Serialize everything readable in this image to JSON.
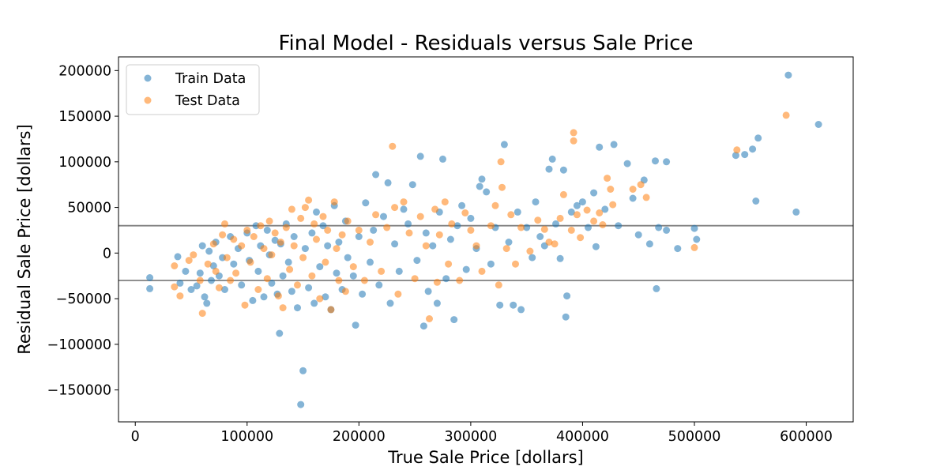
{
  "chart_data": {
    "type": "scatter",
    "title": "Final Model - Residuals versus Sale Price",
    "xlabel": "True Sale Price [dollars]",
    "ylabel": "Residual Sale Price [dollars]",
    "xlim": [
      -15000,
      642000
    ],
    "ylim": [
      -185000,
      215000
    ],
    "xticks": [
      0,
      100000,
      200000,
      300000,
      400000,
      500000,
      600000
    ],
    "xtick_labels": [
      "0",
      "100000",
      "200000",
      "300000",
      "400000",
      "500000",
      "600000"
    ],
    "yticks": [
      -150000,
      -100000,
      -50000,
      0,
      50000,
      100000,
      150000,
      200000
    ],
    "ytick_labels": [
      "−150000",
      "−100000",
      "−50000",
      "0",
      "50000",
      "100000",
      "150000",
      "200000"
    ],
    "grid": false,
    "legend_position": "top-left",
    "reference_lines": [
      30000,
      -30000
    ],
    "reference_line_color": "#808080",
    "series": [
      {
        "name": "Train Data",
        "color": "#1f77b4",
        "opacity": 0.55,
        "points": [
          [
            13000,
            -27000
          ],
          [
            13000,
            -39000
          ],
          [
            38000,
            -4000
          ],
          [
            40000,
            -33000
          ],
          [
            45000,
            -20000
          ],
          [
            50000,
            -40000
          ],
          [
            55000,
            -36000
          ],
          [
            58000,
            -22000
          ],
          [
            60000,
            8000
          ],
          [
            62000,
            -48000
          ],
          [
            64000,
            -55000
          ],
          [
            66000,
            2000
          ],
          [
            68000,
            -30000
          ],
          [
            70000,
            -14000
          ],
          [
            72000,
            12000
          ],
          [
            75000,
            -25000
          ],
          [
            78000,
            -5000
          ],
          [
            80000,
            -40000
          ],
          [
            85000,
            18000
          ],
          [
            88000,
            -12000
          ],
          [
            92000,
            5000
          ],
          [
            95000,
            -35000
          ],
          [
            100000,
            22000
          ],
          [
            102000,
            -8000
          ],
          [
            105000,
            -52000
          ],
          [
            108000,
            30000
          ],
          [
            110000,
            -20000
          ],
          [
            112000,
            8000
          ],
          [
            115000,
            -48000
          ],
          [
            118000,
            25000
          ],
          [
            120000,
            -2000
          ],
          [
            122000,
            -33000
          ],
          [
            125000,
            14000
          ],
          [
            127000,
            -45000
          ],
          [
            129000,
            -88000
          ],
          [
            130000,
            10000
          ],
          [
            132000,
            -25000
          ],
          [
            135000,
            32000
          ],
          [
            137000,
            -10000
          ],
          [
            140000,
            -42000
          ],
          [
            142000,
            18000
          ],
          [
            145000,
            -60000
          ],
          [
            148000,
            -166000
          ],
          [
            150000,
            -129000
          ],
          [
            152000,
            5000
          ],
          [
            155000,
            -38000
          ],
          [
            158000,
            22000
          ],
          [
            160000,
            -55000
          ],
          [
            162000,
            45000
          ],
          [
            165000,
            -15000
          ],
          [
            168000,
            30000
          ],
          [
            170000,
            -48000
          ],
          [
            172000,
            8000
          ],
          [
            175000,
            -62000
          ],
          [
            178000,
            52000
          ],
          [
            180000,
            -22000
          ],
          [
            182000,
            12000
          ],
          [
            185000,
            -40000
          ],
          [
            188000,
            35000
          ],
          [
            190000,
            -5000
          ],
          [
            195000,
            -25000
          ],
          [
            197000,
            -79000
          ],
          [
            200000,
            18000
          ],
          [
            203000,
            -45000
          ],
          [
            206000,
            55000
          ],
          [
            210000,
            -10000
          ],
          [
            213000,
            25000
          ],
          [
            215000,
            86000
          ],
          [
            218000,
            -35000
          ],
          [
            222000,
            40000
          ],
          [
            226000,
            77000
          ],
          [
            228000,
            -55000
          ],
          [
            232000,
            10000
          ],
          [
            236000,
            -20000
          ],
          [
            240000,
            48000
          ],
          [
            244000,
            32000
          ],
          [
            248000,
            75000
          ],
          [
            252000,
            -8000
          ],
          [
            255000,
            106000
          ],
          [
            258000,
            -80000
          ],
          [
            260000,
            22000
          ],
          [
            262000,
            -42000
          ],
          [
            266000,
            8000
          ],
          [
            270000,
            -55000
          ],
          [
            272000,
            45000
          ],
          [
            275000,
            103000
          ],
          [
            278000,
            -28000
          ],
          [
            282000,
            15000
          ],
          [
            285000,
            -73000
          ],
          [
            288000,
            30000
          ],
          [
            292000,
            52000
          ],
          [
            296000,
            -18000
          ],
          [
            300000,
            38000
          ],
          [
            305000,
            5000
          ],
          [
            308000,
            73000
          ],
          [
            310000,
            81000
          ],
          [
            314000,
            67000
          ],
          [
            318000,
            -12000
          ],
          [
            322000,
            28000
          ],
          [
            326000,
            -57000
          ],
          [
            330000,
            119000
          ],
          [
            334000,
            12000
          ],
          [
            338000,
            -57000
          ],
          [
            342000,
            45000
          ],
          [
            345000,
            -62000
          ],
          [
            350000,
            28000
          ],
          [
            355000,
            -5000
          ],
          [
            358000,
            56000
          ],
          [
            362000,
            18000
          ],
          [
            366000,
            8000
          ],
          [
            370000,
            92000
          ],
          [
            373000,
            103000
          ],
          [
            376000,
            32000
          ],
          [
            380000,
            -6000
          ],
          [
            383000,
            91000
          ],
          [
            385000,
            -70000
          ],
          [
            386000,
            -47000
          ],
          [
            390000,
            45000
          ],
          [
            395000,
            52000
          ],
          [
            400000,
            56000
          ],
          [
            405000,
            28000
          ],
          [
            410000,
            66000
          ],
          [
            412000,
            7000
          ],
          [
            415000,
            116000
          ],
          [
            420000,
            48000
          ],
          [
            428000,
            119000
          ],
          [
            432000,
            30000
          ],
          [
            440000,
            98000
          ],
          [
            445000,
            60000
          ],
          [
            450000,
            20000
          ],
          [
            455000,
            80000
          ],
          [
            460000,
            10000
          ],
          [
            465000,
            101000
          ],
          [
            466000,
            -39000
          ],
          [
            468000,
            28000
          ],
          [
            475000,
            100000
          ],
          [
            475000,
            25000
          ],
          [
            485000,
            5000
          ],
          [
            500000,
            27000
          ],
          [
            502000,
            15000
          ],
          [
            537000,
            107000
          ],
          [
            545000,
            108000
          ],
          [
            552000,
            114000
          ],
          [
            555000,
            57000
          ],
          [
            557000,
            126000
          ],
          [
            584000,
            195000
          ],
          [
            591000,
            45000
          ],
          [
            611000,
            141000
          ]
        ]
      },
      {
        "name": "Test Data",
        "color": "#ff7f0e",
        "opacity": 0.55,
        "points": [
          [
            35000,
            -14000
          ],
          [
            35000,
            -37000
          ],
          [
            40000,
            -47000
          ],
          [
            48000,
            -8000
          ],
          [
            52000,
            -2000
          ],
          [
            58000,
            -30000
          ],
          [
            60000,
            -66000
          ],
          [
            65000,
            -12000
          ],
          [
            70000,
            10000
          ],
          [
            72000,
            -20000
          ],
          [
            75000,
            -38000
          ],
          [
            78000,
            20000
          ],
          [
            80000,
            32000
          ],
          [
            82000,
            -5000
          ],
          [
            85000,
            -30000
          ],
          [
            88000,
            15000
          ],
          [
            90000,
            -22000
          ],
          [
            95000,
            8000
          ],
          [
            98000,
            -57000
          ],
          [
            100000,
            25000
          ],
          [
            103000,
            -10000
          ],
          [
            106000,
            18000
          ],
          [
            110000,
            -40000
          ],
          [
            112000,
            30000
          ],
          [
            115000,
            5000
          ],
          [
            118000,
            -28000
          ],
          [
            120000,
            35000
          ],
          [
            122000,
            -2000
          ],
          [
            125000,
            22000
          ],
          [
            128000,
            -47000
          ],
          [
            130000,
            12000
          ],
          [
            132000,
            -60000
          ],
          [
            135000,
            28000
          ],
          [
            138000,
            -18000
          ],
          [
            140000,
            48000
          ],
          [
            142000,
            8000
          ],
          [
            145000,
            -35000
          ],
          [
            148000,
            38000
          ],
          [
            150000,
            -5000
          ],
          [
            152000,
            50000
          ],
          [
            155000,
            58000
          ],
          [
            158000,
            -25000
          ],
          [
            160000,
            32000
          ],
          [
            162000,
            15000
          ],
          [
            165000,
            -50000
          ],
          [
            168000,
            40000
          ],
          [
            170000,
            -10000
          ],
          [
            172000,
            25000
          ],
          [
            175000,
            -62000
          ],
          [
            178000,
            56000
          ],
          [
            180000,
            5000
          ],
          [
            182000,
            -30000
          ],
          [
            185000,
            20000
          ],
          [
            188000,
            -42000
          ],
          [
            190000,
            35000
          ],
          [
            195000,
            -15000
          ],
          [
            200000,
            25000
          ],
          [
            205000,
            -30000
          ],
          [
            210000,
            12000
          ],
          [
            215000,
            42000
          ],
          [
            220000,
            -20000
          ],
          [
            225000,
            28000
          ],
          [
            230000,
            117000
          ],
          [
            232000,
            50000
          ],
          [
            235000,
            -45000
          ],
          [
            240000,
            56000
          ],
          [
            245000,
            22000
          ],
          [
            250000,
            -28000
          ],
          [
            255000,
            40000
          ],
          [
            260000,
            8000
          ],
          [
            263000,
            -72000
          ],
          [
            268000,
            48000
          ],
          [
            270000,
            -32000
          ],
          [
            272000,
            20000
          ],
          [
            277000,
            56000
          ],
          [
            280000,
            -12000
          ],
          [
            283000,
            32000
          ],
          [
            290000,
            -30000
          ],
          [
            295000,
            44000
          ],
          [
            300000,
            25000
          ],
          [
            305000,
            8000
          ],
          [
            310000,
            -20000
          ],
          [
            318000,
            30000
          ],
          [
            322000,
            52000
          ],
          [
            325000,
            -35000
          ],
          [
            327000,
            100000
          ],
          [
            328000,
            72000
          ],
          [
            332000,
            5000
          ],
          [
            336000,
            42000
          ],
          [
            340000,
            -12000
          ],
          [
            345000,
            28000
          ],
          [
            353000,
            2000
          ],
          [
            360000,
            36000
          ],
          [
            366000,
            26000
          ],
          [
            370000,
            12000
          ],
          [
            375000,
            10000
          ],
          [
            380000,
            38000
          ],
          [
            383000,
            64000
          ],
          [
            390000,
            25000
          ],
          [
            392000,
            132000
          ],
          [
            392000,
            123000
          ],
          [
            395000,
            42000
          ],
          [
            398000,
            17000
          ],
          [
            404000,
            47000
          ],
          [
            410000,
            35000
          ],
          [
            415000,
            44000
          ],
          [
            418000,
            31000
          ],
          [
            422000,
            82000
          ],
          [
            425000,
            70000
          ],
          [
            427000,
            53000
          ],
          [
            445000,
            70000
          ],
          [
            452000,
            75000
          ],
          [
            457000,
            61000
          ],
          [
            500000,
            6000
          ],
          [
            538000,
            113000
          ],
          [
            582000,
            151000
          ]
        ]
      }
    ]
  }
}
